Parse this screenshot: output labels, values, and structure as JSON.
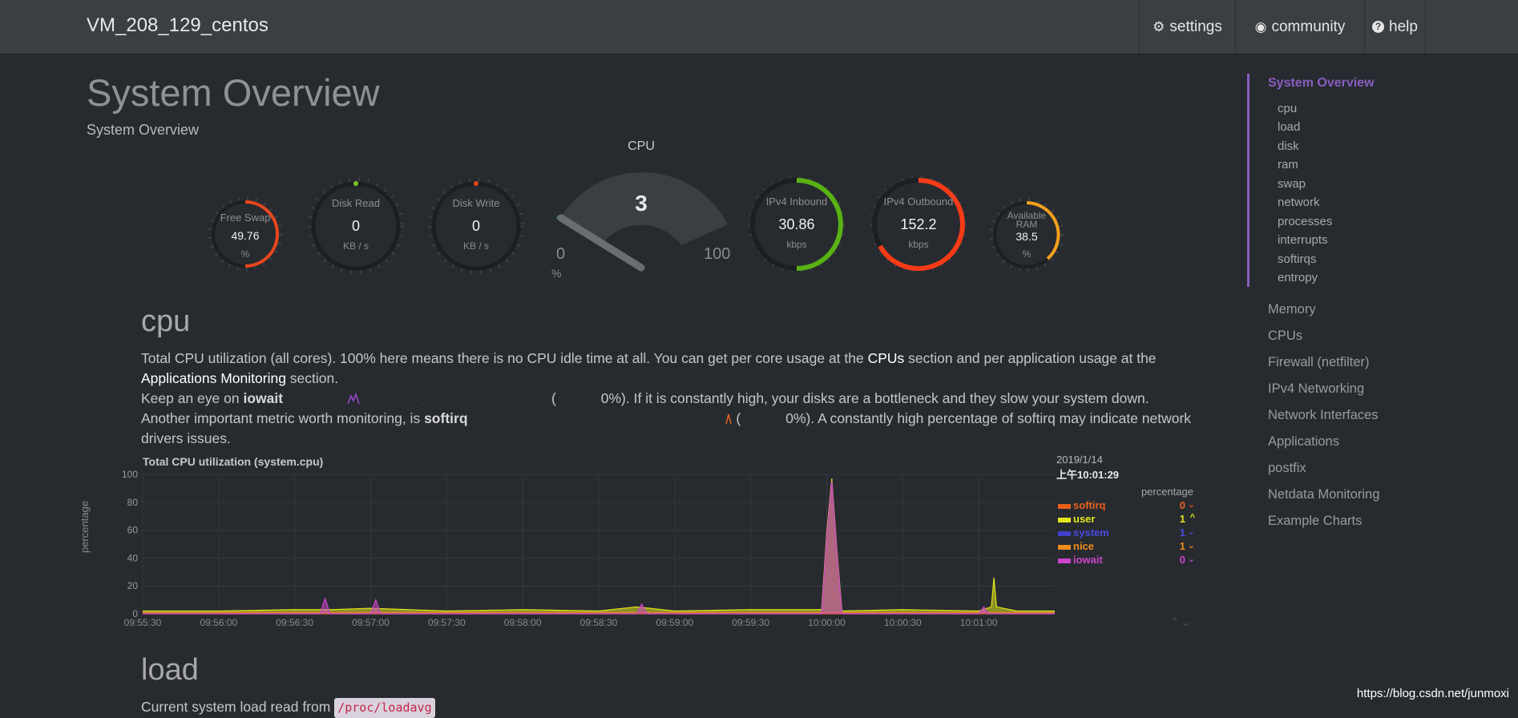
{
  "header": {
    "hostname": "VM_208_129_centos",
    "nav": [
      {
        "icon": "gear-icon",
        "glyph": "⚙",
        "label": "settings"
      },
      {
        "icon": "github-icon",
        "glyph": "◉",
        "label": "community"
      },
      {
        "icon": "question-icon",
        "glyph": "?",
        "label": "help"
      }
    ]
  },
  "page": {
    "title": "System Overview",
    "subtitle": "System Overview"
  },
  "gauges": {
    "swap": {
      "label": "Free Swap",
      "value": "49.76",
      "unit": "%"
    },
    "disk_read": {
      "label": "Disk Read",
      "value": "0",
      "unit": "KB / s"
    },
    "disk_write": {
      "label": "Disk Write",
      "value": "0",
      "unit": "KB / s"
    },
    "cpu": {
      "title": "CPU",
      "value": "3",
      "min": "0",
      "max": "100",
      "unit": "%"
    },
    "ipv4_in": {
      "label": "IPv4 Inbound",
      "value": "30.86",
      "unit": "kbps"
    },
    "ipv4_out": {
      "label": "IPv4 Outbound",
      "value": "152.2",
      "unit": "kbps"
    },
    "ram": {
      "label": "Available RAM",
      "value": "38.5",
      "unit": "%"
    }
  },
  "colors": {
    "swap": "#e8481c",
    "disk_read": "#7cc71d",
    "disk_write": "#e8481c",
    "ipv4_in": "#59b213",
    "ipv4_out": "#f63b17",
    "ram": "#f5a11d",
    "cpu_needle": "#1fb6a6",
    "accent": "#8a5dbf"
  },
  "cpu_section": {
    "title": "cpu",
    "p1_a": "Total CPU utilization (all cores). 100% here means there is no CPU idle time at all. You can get per core usage at the ",
    "p1_link1": "CPUs",
    "p1_b": " section and per application usage at the",
    "p1_link2": "Applications Monitoring",
    "p1_c": " section.",
    "p2_a": "Keep an eye on ",
    "p2_b": "iowait",
    "p2_c": "0%). If it is constantly high, your disks are a bottleneck and they slow your system down.",
    "p3_a": "Another important metric worth monitoring, is ",
    "p3_b": "softirq",
    "p3_c": "0%). A constantly high percentage of softirq may indicate network",
    "p3_d": "drivers issues."
  },
  "chart": {
    "title": "Total CPU utilization (system.cpu)",
    "ylabel": "percentage",
    "legend_date": "2019/1/14",
    "legend_time": "上午10:01:29",
    "legend_unit": "percentage",
    "legend": [
      {
        "name": "softirq",
        "value": "0",
        "arrow": "⌄",
        "color": "#e8601c"
      },
      {
        "name": "user",
        "value": "1",
        "arrow": "^",
        "color": "#e2e51a"
      },
      {
        "name": "system",
        "value": "1",
        "arrow": "⌄",
        "color": "#4040c8"
      },
      {
        "name": "nice",
        "value": "1",
        "arrow": "⌄",
        "color": "#f08c1c"
      },
      {
        "name": "iowait",
        "value": "0",
        "arrow": "⌄",
        "color": "#cc44cc"
      }
    ]
  },
  "chart_data": {
    "type": "area",
    "title": "Total CPU utilization (system.cpu)",
    "xlabel": "",
    "ylabel": "percentage",
    "ylim": [
      0,
      100
    ],
    "y_ticks": [
      0,
      20,
      40,
      60,
      80,
      100
    ],
    "x_ticks": [
      "09:55:30",
      "09:56:00",
      "09:56:30",
      "09:57:00",
      "09:57:30",
      "09:58:00",
      "09:58:30",
      "09:59:00",
      "09:59:30",
      "10:00:00",
      "10:00:30",
      "10:01:00"
    ],
    "x_tick_seconds": [
      0,
      30,
      60,
      90,
      120,
      150,
      180,
      210,
      240,
      270,
      300,
      330
    ],
    "x_range_seconds": [
      0,
      360
    ],
    "series": [
      {
        "name": "softirq",
        "color": "#e8601c",
        "points": [
          [
            0,
            0
          ],
          [
            360,
            0
          ]
        ]
      },
      {
        "name": "user",
        "color": "#e2e51a",
        "points": [
          [
            0,
            2
          ],
          [
            30,
            2
          ],
          [
            60,
            3
          ],
          [
            75,
            3
          ],
          [
            90,
            4
          ],
          [
            120,
            2
          ],
          [
            150,
            3
          ],
          [
            180,
            2
          ],
          [
            195,
            5
          ],
          [
            210,
            2
          ],
          [
            240,
            3
          ],
          [
            268,
            3
          ],
          [
            270,
            58
          ],
          [
            272,
            97
          ],
          [
            274,
            46
          ],
          [
            276,
            2
          ],
          [
            300,
            3
          ],
          [
            330,
            2
          ],
          [
            335,
            5
          ],
          [
            336,
            26
          ],
          [
            337,
            5
          ],
          [
            345,
            2
          ],
          [
            360,
            2
          ]
        ]
      },
      {
        "name": "system",
        "color": "#4040c8",
        "points": [
          [
            0,
            1
          ],
          [
            360,
            1
          ]
        ]
      },
      {
        "name": "nice",
        "color": "#f08c1c",
        "points": [
          [
            0,
            1
          ],
          [
            360,
            1
          ]
        ]
      },
      {
        "name": "iowait",
        "color": "#cc44cc",
        "points": [
          [
            0,
            0
          ],
          [
            70,
            0
          ],
          [
            72,
            11
          ],
          [
            74,
            0
          ],
          [
            90,
            0
          ],
          [
            92,
            10
          ],
          [
            94,
            0
          ],
          [
            195,
            0
          ],
          [
            197,
            7
          ],
          [
            199,
            0
          ],
          [
            268,
            0
          ],
          [
            270,
            55
          ],
          [
            272,
            95
          ],
          [
            274,
            44
          ],
          [
            276,
            0
          ],
          [
            330,
            0
          ],
          [
            332,
            5
          ],
          [
            334,
            0
          ],
          [
            360,
            0
          ]
        ]
      }
    ]
  },
  "load_section": {
    "title": "load",
    "text": "Current system load read from ",
    "code": "/proc/loadavg"
  },
  "sidebar": {
    "active": "System Overview",
    "subitems": [
      "cpu",
      "load",
      "disk",
      "ram",
      "swap",
      "network",
      "processes",
      "interrupts",
      "softirqs",
      "entropy"
    ],
    "items": [
      "Memory",
      "CPUs",
      "Firewall (netfilter)",
      "IPv4 Networking",
      "Network Interfaces",
      "Applications",
      "postfix",
      "Netdata Monitoring",
      "Example Charts"
    ]
  },
  "footer": {
    "url": "https://blog.csdn.net/junmoxi"
  }
}
